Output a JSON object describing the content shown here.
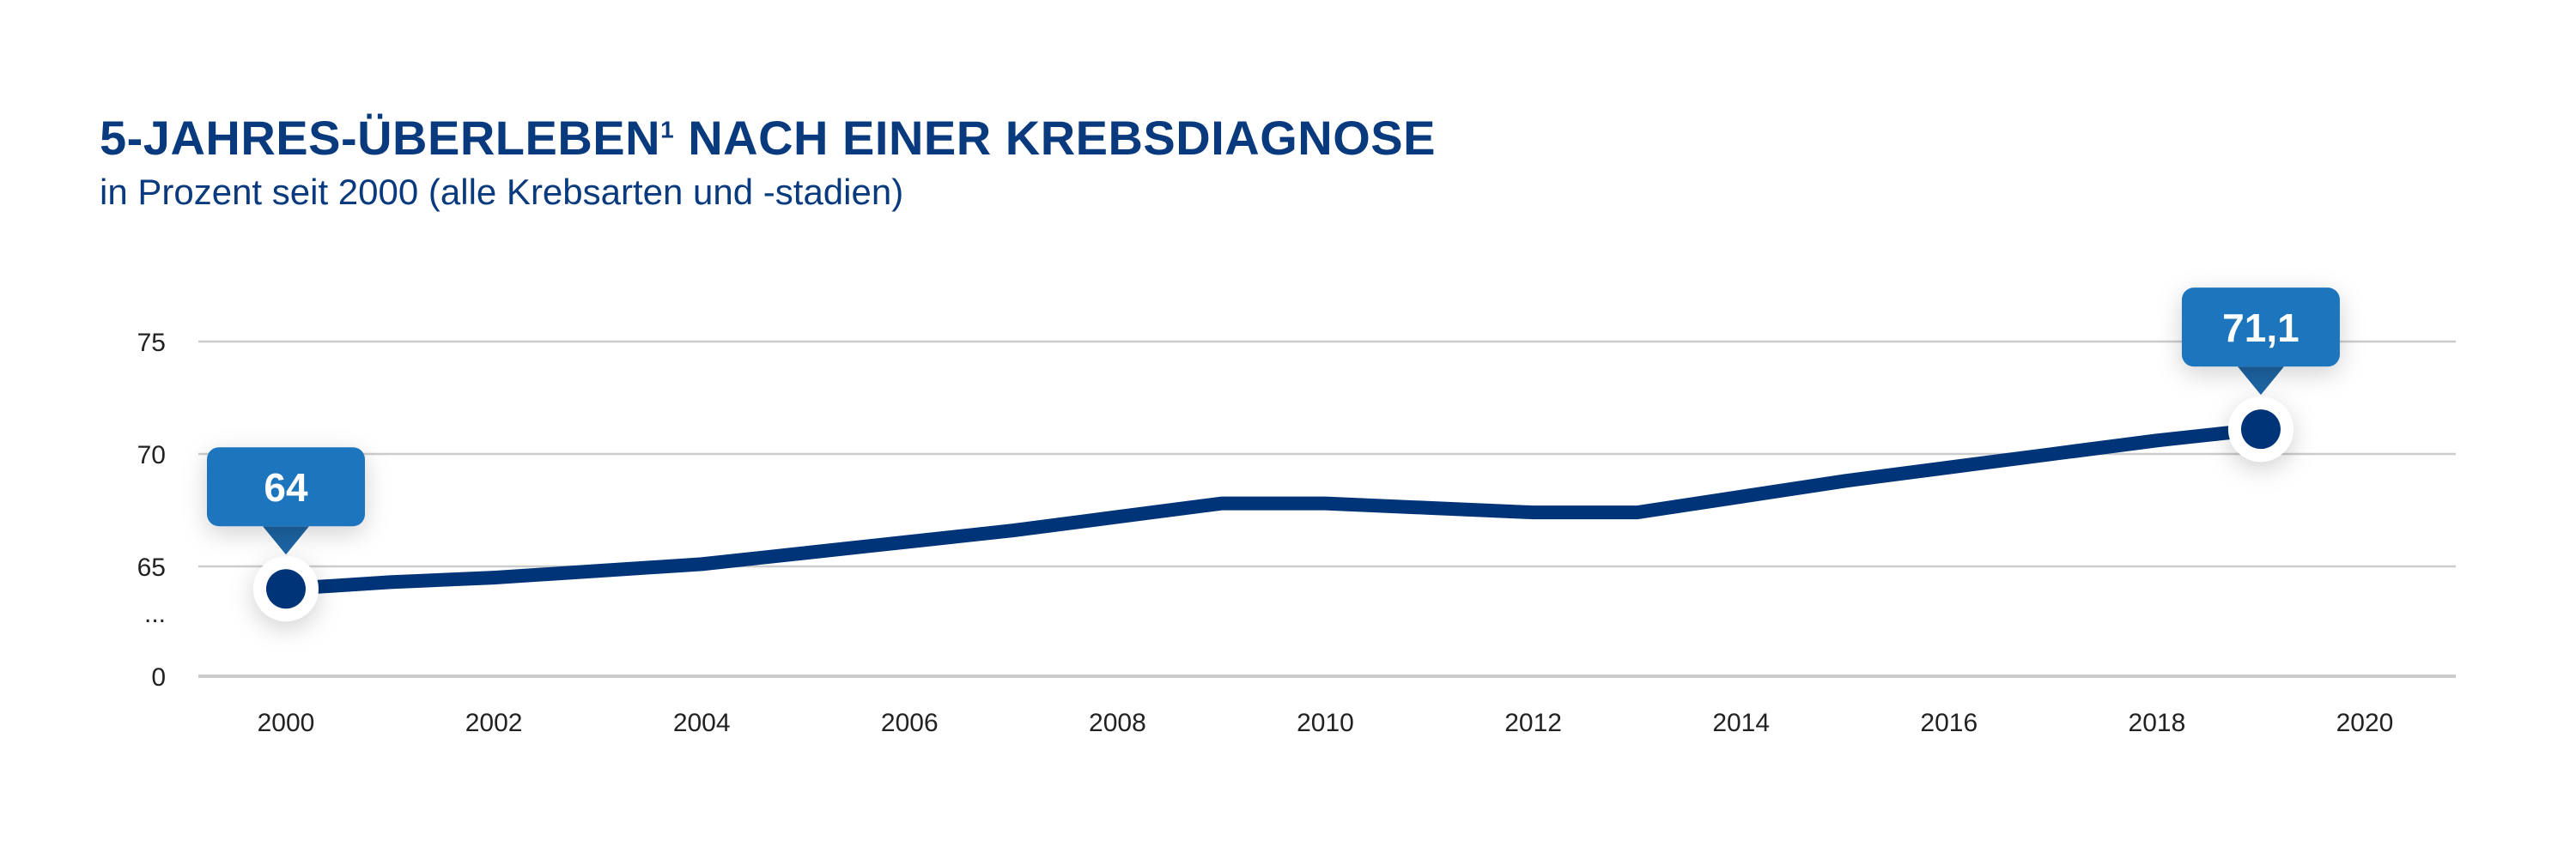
{
  "title": "5-JAHRES-ÜBERLEBEN",
  "title_sup": "1",
  "title_rest": " NACH EINER KREBSDIAGNOSE",
  "subtitle": "in Prozent seit 2000 (alle Krebsarten und -stadien)",
  "colors": {
    "line": "#003478",
    "callout": "#1f74bd",
    "grid": "#cccccc",
    "text": "#0a3a7e"
  },
  "chart_data": {
    "type": "line",
    "title": "5-JAHRES-ÜBERLEBEN¹ NACH EINER KREBSDIAGNOSE",
    "subtitle": "in Prozent seit 2000 (alle Krebsarten und -stadien)",
    "x": [
      2000,
      2001,
      2002,
      2003,
      2004,
      2005,
      2006,
      2007,
      2008,
      2009,
      2010,
      2011,
      2012,
      2013,
      2014,
      2015,
      2016,
      2017,
      2018,
      2019
    ],
    "values": [
      64,
      64.3,
      64.5,
      64.8,
      65.1,
      65.6,
      66.1,
      66.6,
      67.2,
      67.8,
      67.8,
      67.6,
      67.4,
      67.4,
      68.1,
      68.8,
      69.4,
      70.0,
      70.6,
      71.1
    ],
    "xlim": [
      2000,
      2020
    ],
    "x_ticks": [
      "2000",
      "2002",
      "2004",
      "2006",
      "2008",
      "2010",
      "2012",
      "2014",
      "2016",
      "2018",
      "2020"
    ],
    "y_ticks": [
      "75",
      "70",
      "65",
      "...",
      "0"
    ],
    "ylim": [
      65,
      75
    ],
    "y_axis_broken": true,
    "grid": true,
    "annotations": [
      {
        "x": 2000,
        "label": "64"
      },
      {
        "x": 2019,
        "label": "71,1"
      }
    ]
  }
}
